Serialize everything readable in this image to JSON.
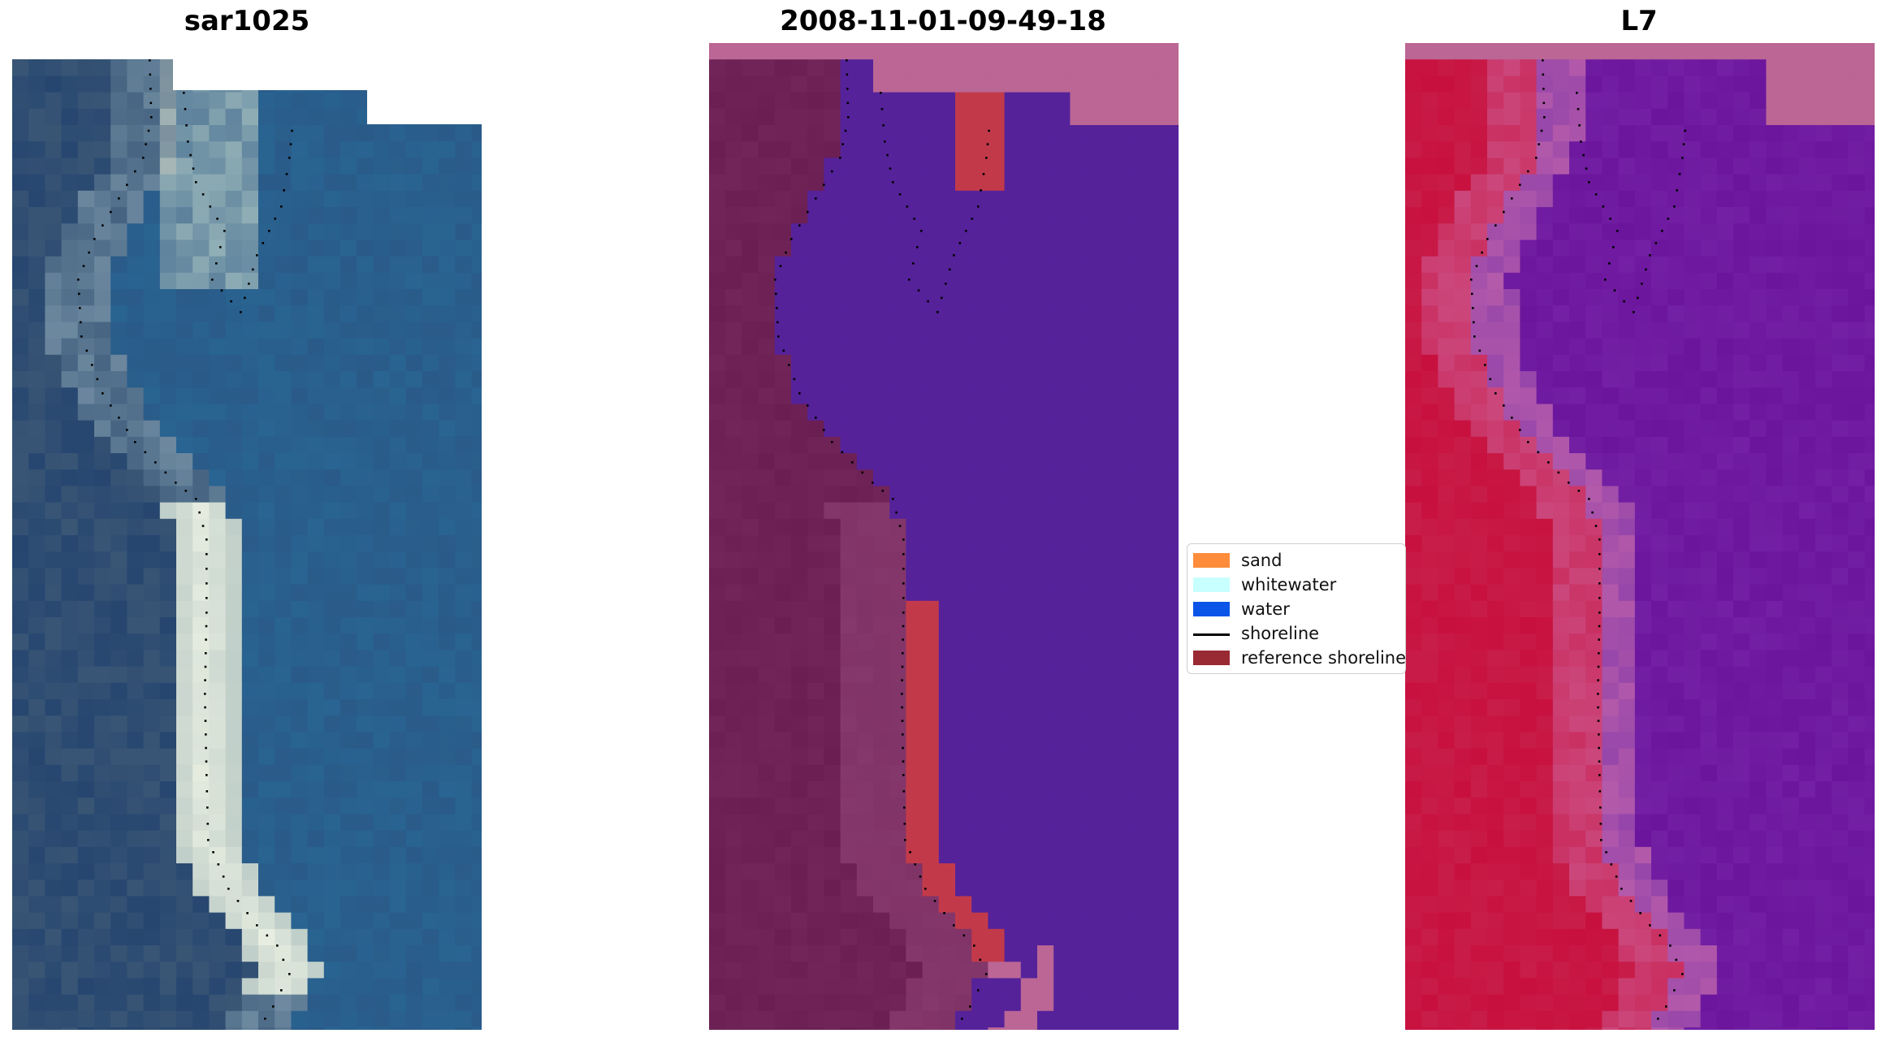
{
  "panels": [
    {
      "title": "sar1025"
    },
    {
      "title": "2008-11-01-09-49-18"
    },
    {
      "title": "L7"
    }
  ],
  "legend": {
    "items": [
      {
        "label": "sand",
        "color": "#ff8c3a"
      },
      {
        "label": "whitewater",
        "color": "#c8ffff"
      },
      {
        "label": "water",
        "color": "#0a55e8"
      },
      {
        "label": "shoreline",
        "color": "#000000"
      },
      {
        "label": "reference shoreline",
        "color": "#992a33"
      }
    ]
  },
  "colors": {
    "rgb_water": "#2a5a88",
    "rgb_surf": "#f2f6e6",
    "class_land": "#6a1e52",
    "class_water": "#55229a",
    "class_sand": "#c23a4a",
    "class_nodata": "#bb6695",
    "ndwi_land": "#c8103e",
    "ndwi_water": "#6b149c",
    "ndwi_nodata": "#bb6695"
  }
}
